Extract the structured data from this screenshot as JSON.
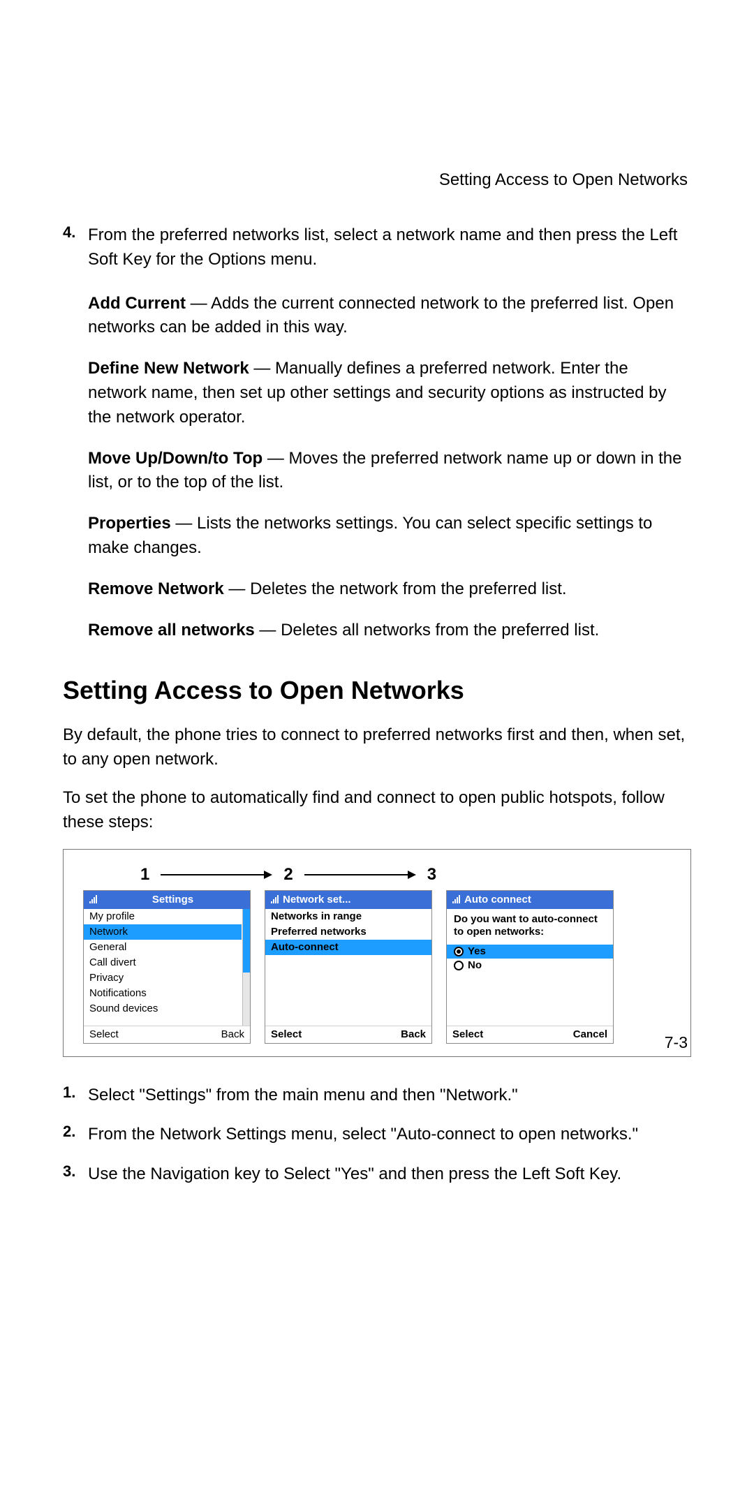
{
  "header": {
    "title": "Setting Access to Open Networks"
  },
  "step4": {
    "num": "4.",
    "text": "From the preferred networks list, select a network name and then press the Left Soft Key for the Options menu."
  },
  "options": [
    {
      "bold": "Add Current",
      "rest": " — Adds the current connected network to the preferred list. Open networks can be added in this way."
    },
    {
      "bold": "Define New Network",
      "rest": " — Manually defines a preferred network. Enter the network name, then set up other settings and security options as instructed by the network operator."
    },
    {
      "bold": "Move Up/Down/to Top",
      "rest": " — Moves the preferred network name up or down in the list, or to the top of the list."
    },
    {
      "bold": "Properties",
      "rest": " — Lists the networks settings. You can select specific settings to make changes."
    },
    {
      "bold": "Remove Network",
      "rest": " — Deletes the network from the preferred list."
    },
    {
      "bold": "Remove all networks",
      "rest": " — Deletes all networks from the preferred list."
    }
  ],
  "section_heading": "Setting Access to Open Networks",
  "paras": [
    "By default, the phone tries to connect to preferred networks first and then, when set, to any open network.",
    "To set the phone to automatically find and connect to open public hotspots, follow these steps:"
  ],
  "figure": {
    "nums": [
      "1",
      "2",
      "3"
    ],
    "screens": {
      "s1": {
        "title": "Settings",
        "items": [
          "My profile",
          "Network",
          "General",
          "Call divert",
          "Privacy",
          "Notifications",
          "Sound devices"
        ],
        "selected_index": 1,
        "footer_left": "Select",
        "footer_right": "Back",
        "scroll_thumb_height_pct": 55
      },
      "s2": {
        "title": "Network set...",
        "items": [
          "Networks in range",
          "Preferred networks",
          "Auto-connect"
        ],
        "selected_index": 2,
        "footer_left": "Select",
        "footer_right": "Back"
      },
      "s3": {
        "title": "Auto connect",
        "prompt": "Do you want to auto-connect to open networks:",
        "radios": [
          {
            "label": "Yes",
            "checked": true
          },
          {
            "label": "No",
            "checked": false
          }
        ],
        "selected_radio_index": 0,
        "footer_left": "Select",
        "footer_right": "Cancel"
      }
    }
  },
  "ordered_steps": [
    {
      "num": "1.",
      "text": "Select \"Settings\" from the main menu and then \"Network.\""
    },
    {
      "num": "2.",
      "text": "From the Network Settings menu, select \"Auto-connect to open networks.\""
    },
    {
      "num": "3.",
      "text": "Use the Navigation key to Select \"Yes\" and then press the Left Soft Key."
    }
  ],
  "page_number": "7-3",
  "colors": {
    "header_blue": "#3a6fd8",
    "highlight_blue": "#1d9dff",
    "border_gray": "#767676"
  }
}
